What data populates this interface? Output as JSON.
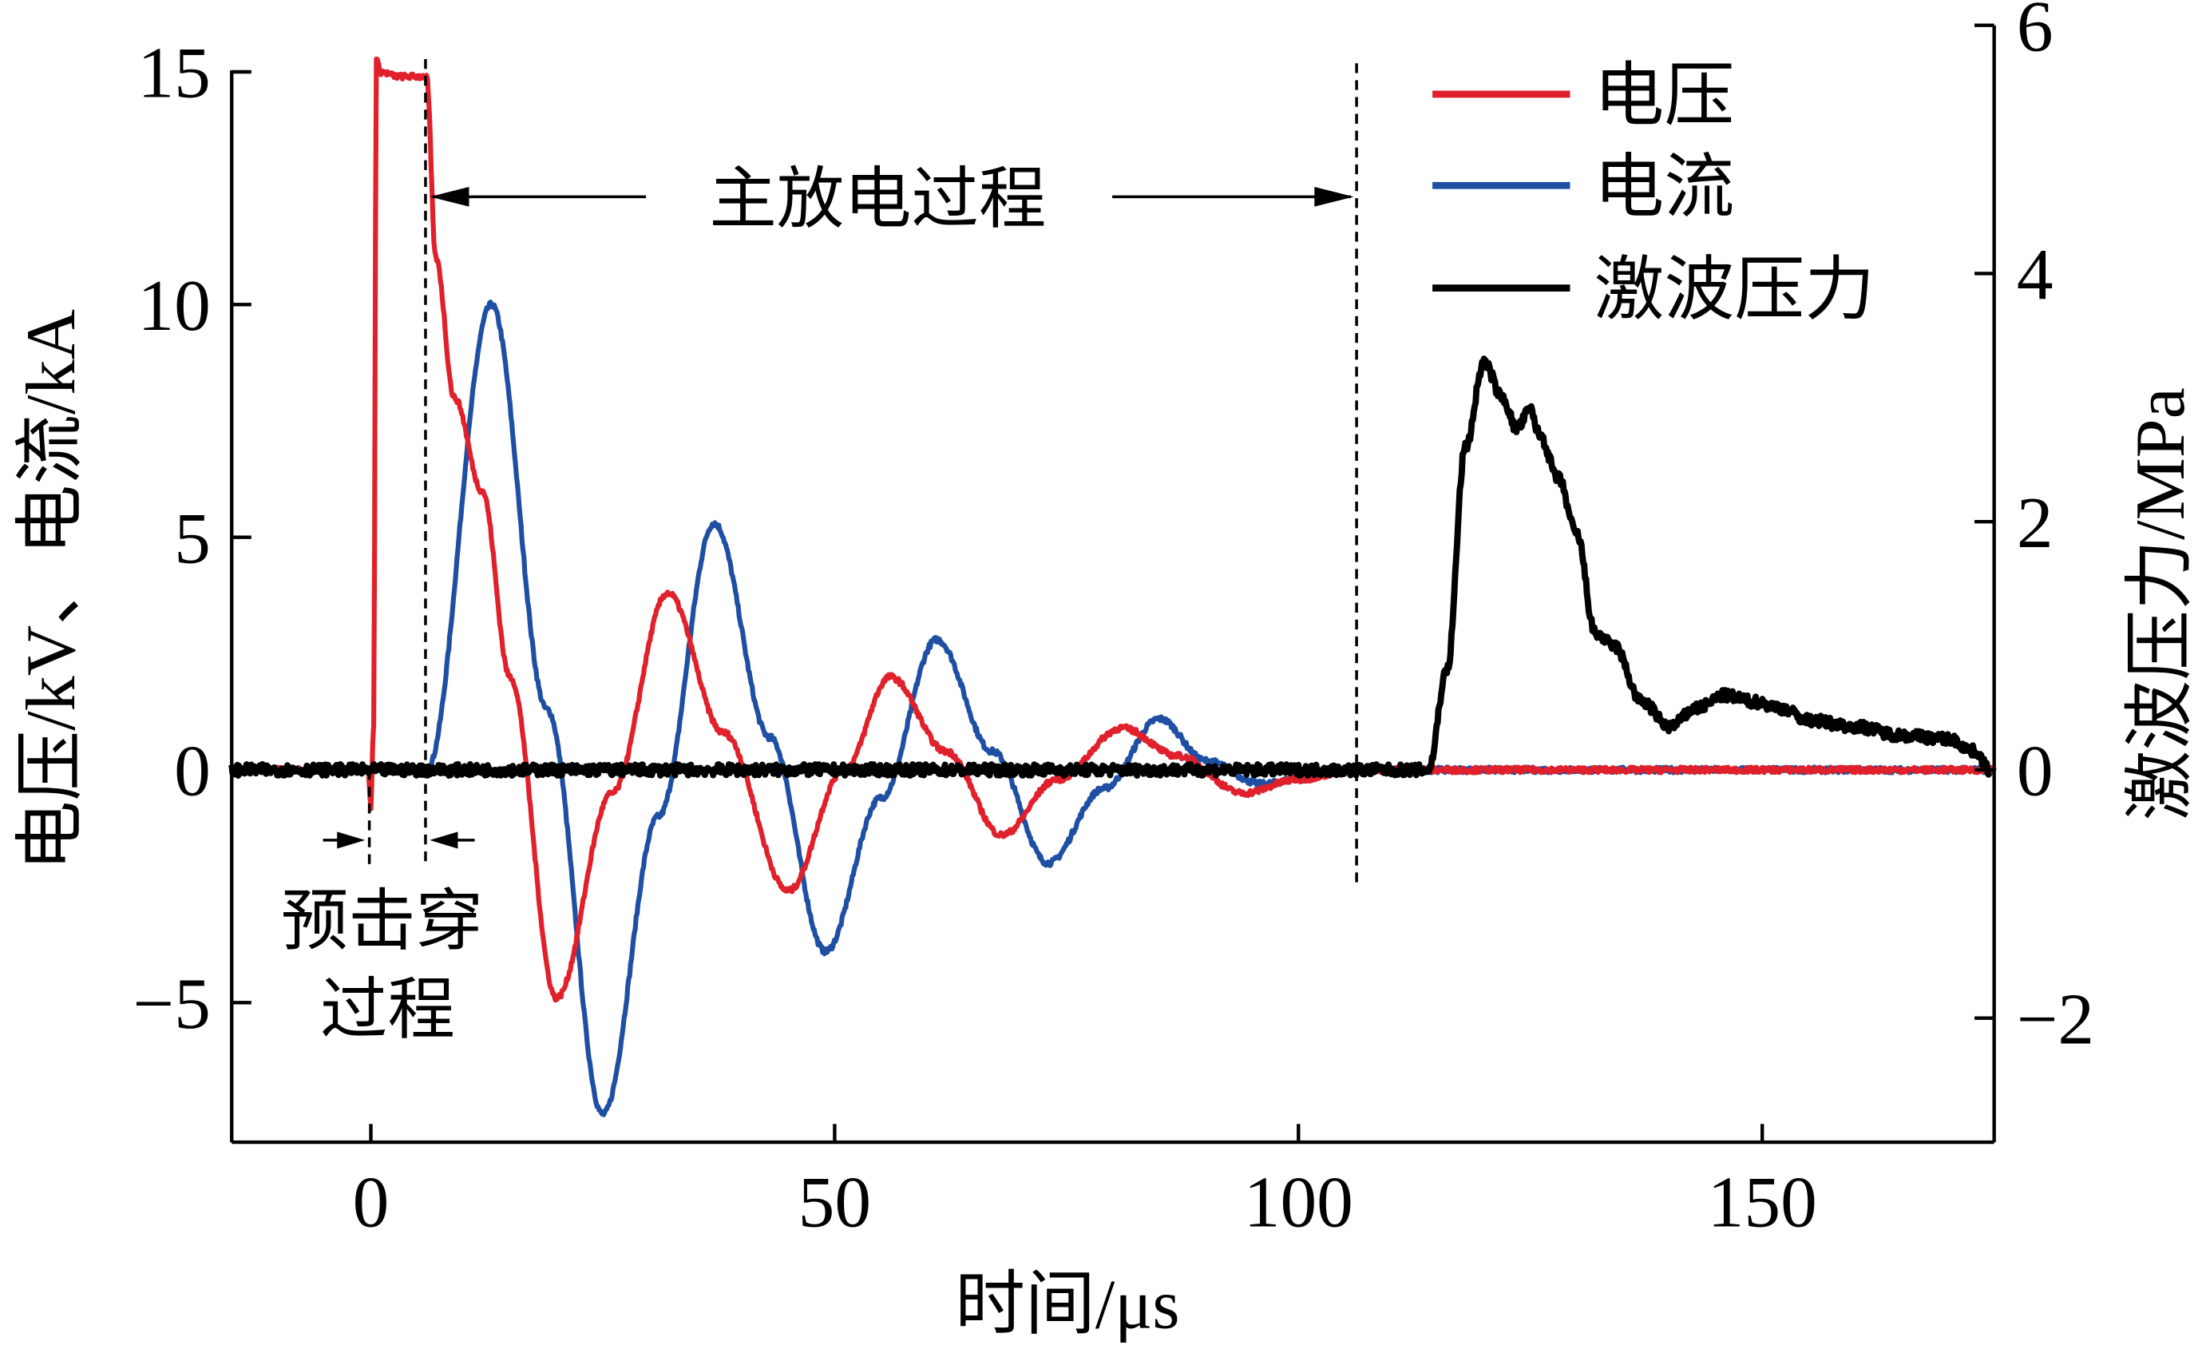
{
  "chart_data": {
    "type": "line",
    "xlabel": "时间/μs",
    "ylabel_left": "电压/kV、电流/kA",
    "ylabel_right": "激波压力/MPa",
    "xlim": [
      -15,
      175
    ],
    "ylim_left": [
      -8,
      16
    ],
    "ylim_right": [
      -3,
      6
    ],
    "xticks": [
      0,
      50,
      100,
      150
    ],
    "xtick_labels": [
      "0",
      "50",
      "100",
      "150"
    ],
    "yticks_left": [
      15,
      10,
      5,
      0,
      -5
    ],
    "ytick_labels_left": [
      "15",
      "10",
      "5",
      "0",
      "−5"
    ],
    "yticks_right": [
      6,
      4,
      2,
      0,
      -2
    ],
    "ytick_labels_right": [
      "6",
      "4",
      "2",
      "0",
      "−2"
    ],
    "grid": false,
    "legend_position": "top-right",
    "series": [
      {
        "name": "电压",
        "axis": "left",
        "color": "#e0202a",
        "x": [
          -15,
          -0.3,
          0,
          0.3,
          0.6,
          1,
          3,
          6,
          7,
          9,
          12,
          15,
          20,
          26,
          32,
          38,
          45,
          51,
          56,
          62,
          68,
          74,
          81,
          87,
          94,
          100,
          106,
          175
        ],
        "y": [
          0,
          0,
          -0.8,
          1,
          15.3,
          15,
          14.9,
          14.9,
          11,
          8,
          6,
          2,
          -4.9,
          -0.5,
          3.8,
          0.8,
          -2.6,
          0,
          2.0,
          0.4,
          -1.4,
          -0.2,
          0.9,
          0.3,
          -0.5,
          -0.2,
          0,
          0
        ]
      },
      {
        "name": "电流",
        "axis": "left",
        "color": "#1f4fa3",
        "x": [
          -15,
          6,
          13,
          19,
          25,
          31,
          37,
          43,
          49,
          55,
          61,
          67,
          73,
          79,
          85,
          90,
          96,
          104,
          175
        ],
        "y": [
          0,
          0,
          10.0,
          1.3,
          -7.4,
          -1.0,
          5.3,
          0.7,
          -3.9,
          -0.6,
          2.8,
          0.4,
          -2.0,
          -0.4,
          1.1,
          0.2,
          -0.3,
          0,
          0
        ]
      },
      {
        "name": "激波压力",
        "axis": "right",
        "color": "#000000",
        "x": [
          -15,
          114,
          116,
          118,
          120,
          122,
          123.5,
          125,
          126,
          128,
          130,
          132,
          134,
          137,
          140,
          143,
          146,
          149,
          152,
          155,
          160,
          165,
          170,
          173,
          174.5
        ],
        "y": [
          0,
          0,
          0.8,
          2.6,
          3.28,
          3.0,
          2.75,
          2.9,
          2.7,
          2.35,
          1.9,
          1.1,
          1.0,
          0.55,
          0.35,
          0.5,
          0.6,
          0.55,
          0.5,
          0.4,
          0.35,
          0.28,
          0.25,
          0.15,
          0
        ]
      }
    ],
    "annotations": {
      "main_discharge": "主放电过程",
      "prebreakdown_line1": "预击穿",
      "prebreakdown_line2": "过程"
    }
  }
}
